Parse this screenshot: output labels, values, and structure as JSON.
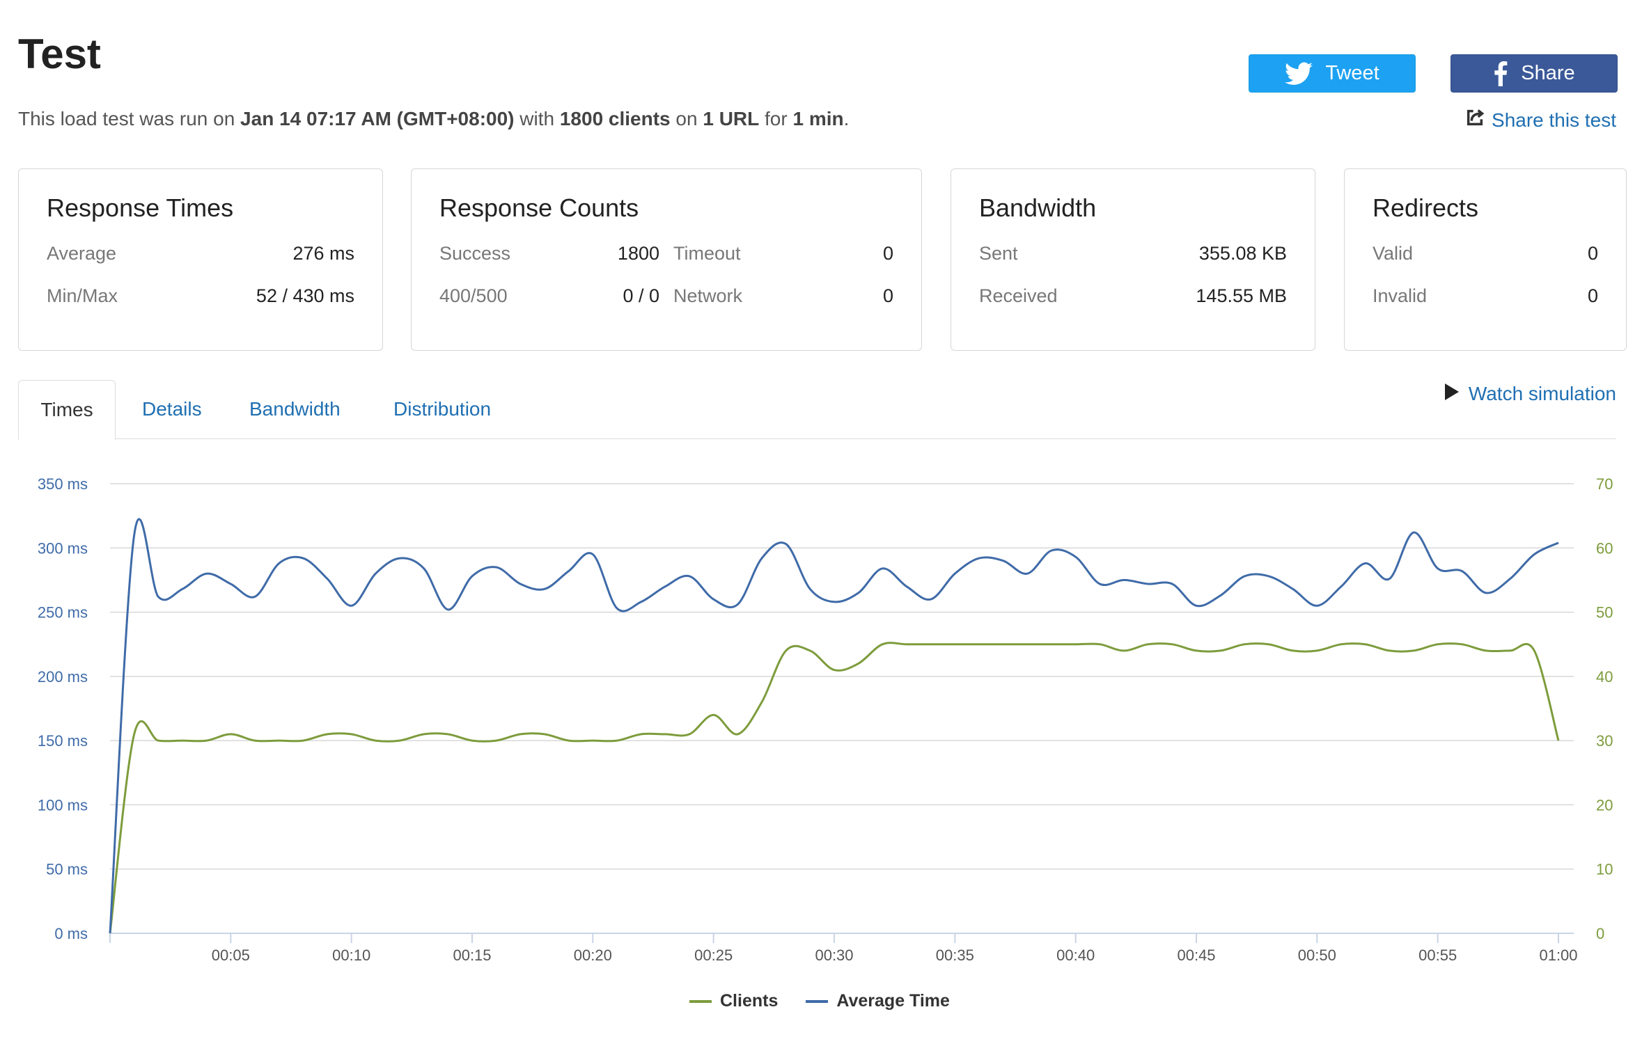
{
  "header": {
    "title": "Test",
    "subtitle": {
      "t1": "This load test was run on ",
      "date": "Jan 14 07:17 AM (GMT+08:00)",
      "t2": " with ",
      "clients": "1800 clients",
      "t3": " on ",
      "urls": "1 URL",
      "t4": " for ",
      "duration": "1 min",
      "t5": "."
    },
    "tweet_label": "Tweet",
    "share_label": "Share",
    "share_test_label": "Share this test",
    "colors": {
      "tweet": "#1da1f2",
      "share": "#3b5998",
      "link": "#1f6fb2"
    }
  },
  "cards": {
    "response_times": {
      "title": "Response Times",
      "average_label": "Average",
      "average_value": "276 ms",
      "minmax_label": "Min/Max",
      "minmax_value": "52 / 430 ms"
    },
    "response_counts": {
      "title": "Response Counts",
      "success_label": "Success",
      "success_value": "1800",
      "timeout_label": "Timeout",
      "timeout_value": "0",
      "errors_label": "400/500",
      "errors_value": "0 / 0",
      "network_label": "Network",
      "network_value": "0"
    },
    "bandwidth": {
      "title": "Bandwidth",
      "sent_label": "Sent",
      "sent_value": "355.08 KB",
      "received_label": "Received",
      "received_value": "145.55 MB"
    },
    "redirects": {
      "title": "Redirects",
      "valid_label": "Valid",
      "valid_value": "0",
      "invalid_label": "Invalid",
      "invalid_value": "0"
    }
  },
  "tabs": {
    "times": "Times",
    "details": "Details",
    "bandwidth": "Bandwidth",
    "distribution": "Distribution",
    "active": "times"
  },
  "watch_label": "Watch simulation",
  "chart_data": {
    "type": "line",
    "x_ticks": [
      "00:05",
      "00:10",
      "00:15",
      "00:20",
      "00:25",
      "00:30",
      "00:35",
      "00:40",
      "00:45",
      "00:50",
      "00:55",
      "01:00"
    ],
    "xlim": [
      0,
      60
    ],
    "y_left_ticks": [
      "0 ms",
      "50 ms",
      "100 ms",
      "150 ms",
      "200 ms",
      "250 ms",
      "300 ms",
      "350 ms"
    ],
    "ylim_left": [
      0,
      350
    ],
    "y_right_ticks": [
      "0",
      "10",
      "20",
      "30",
      "40",
      "50",
      "60",
      "70"
    ],
    "ylim_right": [
      0,
      70
    ],
    "grid": true,
    "legend_position": "bottom-center",
    "series": [
      {
        "name": "Clients",
        "axis": "right",
        "color": "#7d9c3c",
        "x": [
          0,
          1,
          2,
          3,
          4,
          5,
          6,
          7,
          8,
          9,
          10,
          11,
          12,
          13,
          14,
          15,
          16,
          17,
          18,
          19,
          20,
          21,
          22,
          23,
          24,
          25,
          26,
          27,
          28,
          29,
          30,
          31,
          32,
          33,
          34,
          35,
          36,
          37,
          38,
          39,
          40,
          41,
          42,
          43,
          44,
          45,
          46,
          47,
          48,
          49,
          50,
          51,
          52,
          53,
          54,
          55,
          56,
          57,
          58,
          59,
          60
        ],
        "values": [
          0,
          31,
          30,
          30,
          30,
          31,
          30,
          30,
          30,
          31,
          31,
          30,
          30,
          31,
          31,
          30,
          30,
          31,
          31,
          30,
          30,
          30,
          31,
          31,
          31,
          34,
          31,
          36,
          44,
          44,
          41,
          42,
          45,
          45,
          45,
          45,
          45,
          45,
          45,
          45,
          45,
          45,
          44,
          45,
          45,
          44,
          44,
          45,
          45,
          44,
          44,
          45,
          45,
          44,
          44,
          45,
          45,
          44,
          44,
          44,
          30
        ]
      },
      {
        "name": "Average Time",
        "axis": "left",
        "color": "#3f6ba8",
        "x": [
          0,
          1,
          2,
          3,
          4,
          5,
          6,
          7,
          8,
          9,
          10,
          11,
          12,
          13,
          14,
          15,
          16,
          17,
          18,
          19,
          20,
          21,
          22,
          23,
          24,
          25,
          26,
          27,
          28,
          29,
          30,
          31,
          32,
          33,
          34,
          35,
          36,
          37,
          38,
          39,
          40,
          41,
          42,
          43,
          44,
          45,
          46,
          47,
          48,
          49,
          50,
          51,
          52,
          53,
          54,
          55,
          56,
          57,
          58,
          59,
          60
        ],
        "values": [
          0,
          310,
          262,
          268,
          280,
          272,
          262,
          288,
          292,
          276,
          255,
          280,
          292,
          284,
          252,
          278,
          285,
          272,
          268,
          282,
          295,
          253,
          258,
          270,
          278,
          260,
          256,
          292,
          303,
          268,
          258,
          265,
          284,
          270,
          260,
          280,
          292,
          290,
          280,
          298,
          293,
          272,
          275,
          272,
          272,
          255,
          263,
          278,
          278,
          268,
          255,
          270,
          288,
          276,
          312,
          284,
          282,
          265,
          276,
          295,
          304
        ]
      }
    ]
  }
}
